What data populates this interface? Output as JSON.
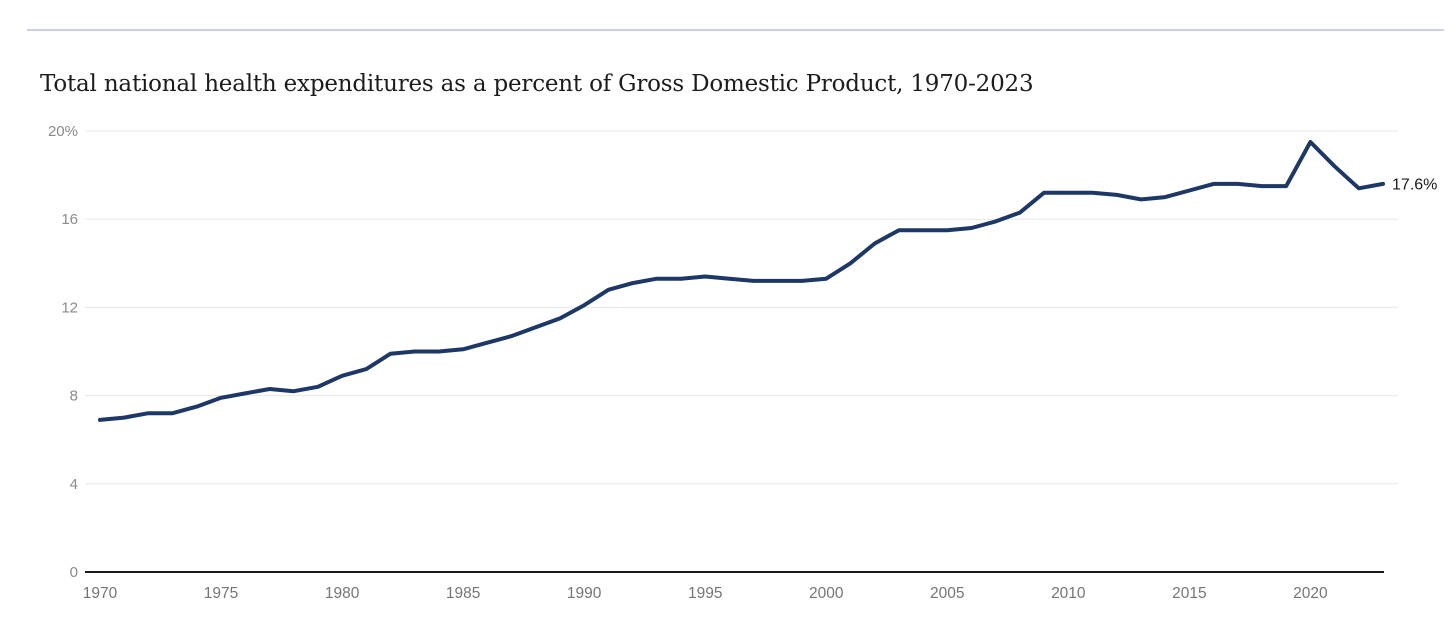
{
  "header": {
    "title": "Total national health expenditures as a percent of Gross Domestic Product, 1970-2023"
  },
  "chart_data": {
    "type": "line",
    "title": "Total national health expenditures as a percent of Gross Domestic Product, 1970-2023",
    "x": [
      1970,
      1971,
      1972,
      1973,
      1974,
      1975,
      1976,
      1977,
      1978,
      1979,
      1980,
      1981,
      1982,
      1983,
      1984,
      1985,
      1986,
      1987,
      1988,
      1989,
      1990,
      1991,
      1992,
      1993,
      1994,
      1995,
      1996,
      1997,
      1998,
      1999,
      2000,
      2001,
      2002,
      2003,
      2004,
      2005,
      2006,
      2007,
      2008,
      2009,
      2010,
      2011,
      2012,
      2013,
      2014,
      2015,
      2016,
      2017,
      2018,
      2019,
      2020,
      2021,
      2022,
      2023
    ],
    "series": [
      {
        "name": "Total national health expenditures as a percent of GDP",
        "values": [
          6.9,
          7.0,
          7.2,
          7.2,
          7.5,
          7.9,
          8.1,
          8.3,
          8.2,
          8.4,
          8.9,
          9.2,
          9.9,
          10.0,
          10.0,
          10.1,
          10.4,
          10.7,
          11.1,
          11.5,
          12.1,
          12.8,
          13.1,
          13.3,
          13.3,
          13.4,
          13.3,
          13.2,
          13.2,
          13.2,
          13.3,
          14.0,
          14.9,
          15.5,
          15.5,
          15.5,
          15.6,
          15.9,
          16.3,
          17.2,
          17.2,
          17.2,
          17.1,
          16.9,
          17.0,
          17.3,
          17.6,
          17.6,
          17.5,
          17.5,
          19.5,
          18.4,
          17.4,
          17.6
        ]
      }
    ],
    "end_label": "17.6%",
    "xlabel": "",
    "ylabel": "",
    "ylim": [
      0,
      20
    ],
    "yticks": [
      0,
      4,
      8,
      12,
      16,
      20
    ],
    "ytick_labels": [
      "0",
      "4",
      "8",
      "12",
      "16",
      "20%"
    ],
    "xticks": [
      1970,
      1975,
      1980,
      1985,
      1990,
      1995,
      2000,
      2005,
      2010,
      2015,
      2020
    ],
    "grid": "horizontal",
    "legend": "none",
    "colors": {
      "line": "#1d3866",
      "grid": "#e7e7e7",
      "zero_axis": "#1a1a1a",
      "y_tick": "#8a8a8a",
      "x_tick": "#757575",
      "title": "#1c1c1c",
      "end_label": "#1b1b1b",
      "top_rule": "#c9d2e0",
      "background": "#ffffff"
    }
  }
}
